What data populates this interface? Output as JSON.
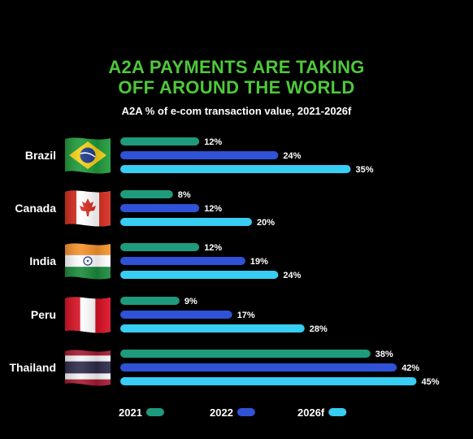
{
  "chart_data": {
    "type": "bar",
    "orientation": "horizontal",
    "title_lines": [
      "A2A PAYMENTS ARE TAKING",
      "OFF AROUND THE WORLD"
    ],
    "subtitle": "A2A % of e-com transaction value, 2021-2026f",
    "categories": [
      "Brazil",
      "Canada",
      "India",
      "Peru",
      "Thailand"
    ],
    "flags": [
      "brazil-flag-icon",
      "canada-flag-icon",
      "india-flag-icon",
      "peru-flag-icon",
      "thailand-flag-icon"
    ],
    "series": [
      {
        "name": "2021",
        "color": "#1e9a7c",
        "values": [
          12,
          8,
          12,
          9,
          38
        ]
      },
      {
        "name": "2022",
        "color": "#2f52d6",
        "values": [
          24,
          12,
          19,
          17,
          42
        ]
      },
      {
        "name": "2026f",
        "color": "#38cdf2",
        "values": [
          35,
          20,
          24,
          28,
          45
        ]
      }
    ],
    "value_suffix": "%",
    "xlim": [
      0,
      45
    ],
    "grid": false,
    "legend": "bottom"
  }
}
